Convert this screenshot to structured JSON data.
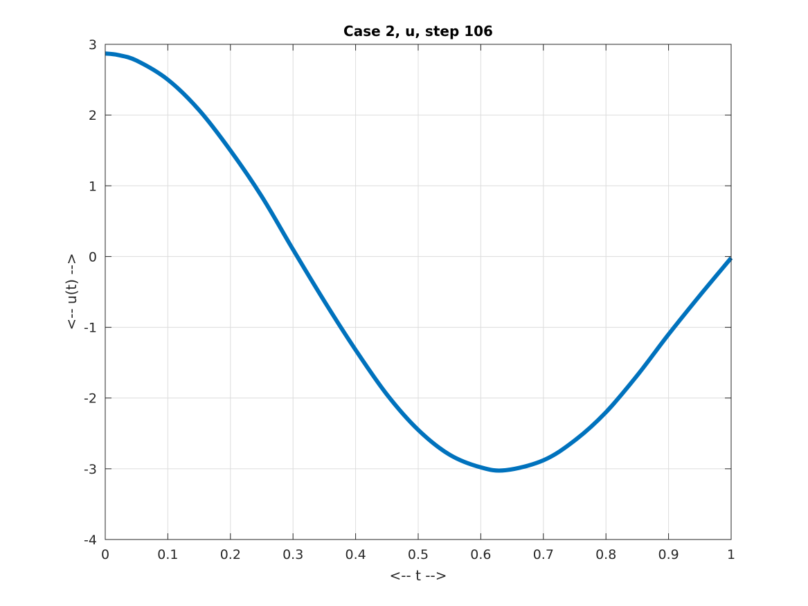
{
  "chart_data": {
    "type": "line",
    "title": "Case 2, u, step 106",
    "xlabel": "<-- t -->",
    "ylabel": "<-- u(t) -->",
    "xlim": [
      0,
      1
    ],
    "ylim": [
      -4,
      3
    ],
    "xticks": [
      0,
      0.1,
      0.2,
      0.3,
      0.4,
      0.5,
      0.6,
      0.7,
      0.8,
      0.9,
      1
    ],
    "xtick_labels": [
      "0",
      "0.1",
      "0.2",
      "0.3",
      "0.4",
      "0.5",
      "0.6",
      "0.7",
      "0.8",
      "0.9",
      "1"
    ],
    "yticks": [
      3,
      2,
      1,
      0,
      -1,
      -2,
      -3,
      -4
    ],
    "ytick_labels": [
      "3",
      "2",
      "1",
      "0",
      "-1",
      "-2",
      "-3",
      "-4"
    ],
    "grid": true,
    "colors": {
      "line": "#0072BD"
    },
    "series": [
      {
        "x": [
          0,
          0.02,
          0.05,
          0.1,
          0.15,
          0.2,
          0.25,
          0.3,
          0.35,
          0.4,
          0.45,
          0.5,
          0.55,
          0.6,
          0.64,
          0.7,
          0.75,
          0.8,
          0.85,
          0.9,
          0.95,
          1.0
        ],
        "y": [
          2.87,
          2.85,
          2.77,
          2.5,
          2.07,
          1.5,
          0.85,
          0.1,
          -0.63,
          -1.32,
          -1.95,
          -2.45,
          -2.8,
          -2.98,
          -3.02,
          -2.88,
          -2.6,
          -2.2,
          -1.68,
          -1.1,
          -0.55,
          -0.02
        ]
      }
    ]
  }
}
